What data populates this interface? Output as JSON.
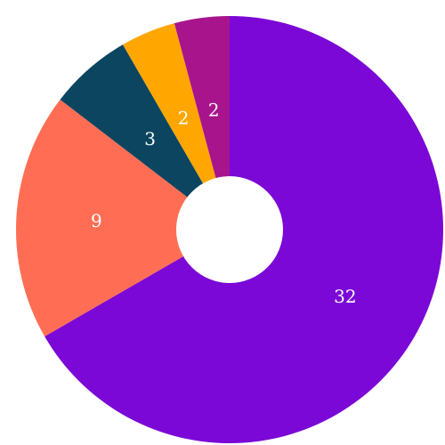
{
  "chart_data": {
    "type": "pie",
    "title": "",
    "hole": true,
    "slices": [
      {
        "value": 32,
        "label": "32",
        "color": "#7b08d6"
      },
      {
        "value": 9,
        "label": "9",
        "color": "#ff6e54"
      },
      {
        "value": 3,
        "label": "3",
        "color": "#0c4560"
      },
      {
        "value": 2,
        "label": "2",
        "color": "#ffa600"
      },
      {
        "value": 2,
        "label": "2",
        "color": "#a8148c"
      }
    ]
  }
}
